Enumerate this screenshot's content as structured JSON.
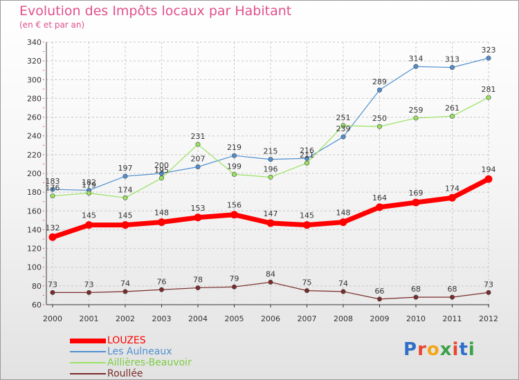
{
  "title": "Evolution des Impôts locaux par Habitant",
  "subtitle": "(en € et par an)",
  "logo": {
    "text": "Proxiti",
    "colors": [
      "#2e6fc9",
      "#e8462f",
      "#f2a51a",
      "#3aa04a",
      "#e8462f",
      "#2e6fc9",
      "#3aa04a"
    ]
  },
  "chart_data": {
    "type": "line",
    "x": [
      "2000",
      "2001",
      "2002",
      "2003",
      "2004",
      "2005",
      "2006",
      "2007",
      "2008",
      "2009",
      "2010",
      "2011",
      "2012"
    ],
    "ylim": [
      60,
      340
    ],
    "yticks": [
      60,
      80,
      100,
      120,
      140,
      160,
      180,
      200,
      220,
      240,
      260,
      280,
      300,
      320,
      340
    ],
    "grid": true,
    "legend_position": "bottom-left",
    "series": [
      {
        "name": "LOUZES",
        "color": "#ff0000",
        "width": 7,
        "values": [
          132,
          145,
          145,
          148,
          153,
          156,
          147,
          145,
          148,
          164,
          169,
          174,
          194
        ]
      },
      {
        "name": "Les Aulneaux",
        "color": "#4f8fcf",
        "width": 1.2,
        "values": [
          183,
          182,
          197,
          200,
          207,
          219,
          215,
          216,
          239,
          289,
          314,
          313,
          323
        ]
      },
      {
        "name": "Aillières-Beauvoir",
        "color": "#99e35f",
        "width": 1.2,
        "values": [
          176,
          179,
          174,
          195,
          231,
          199,
          196,
          211,
          251,
          250,
          259,
          261,
          281
        ]
      },
      {
        "name": "Roullée",
        "color": "#7a2b2b",
        "width": 1.2,
        "values": [
          73,
          73,
          74,
          76,
          78,
          79,
          84,
          75,
          74,
          66,
          68,
          68,
          73
        ]
      }
    ]
  }
}
